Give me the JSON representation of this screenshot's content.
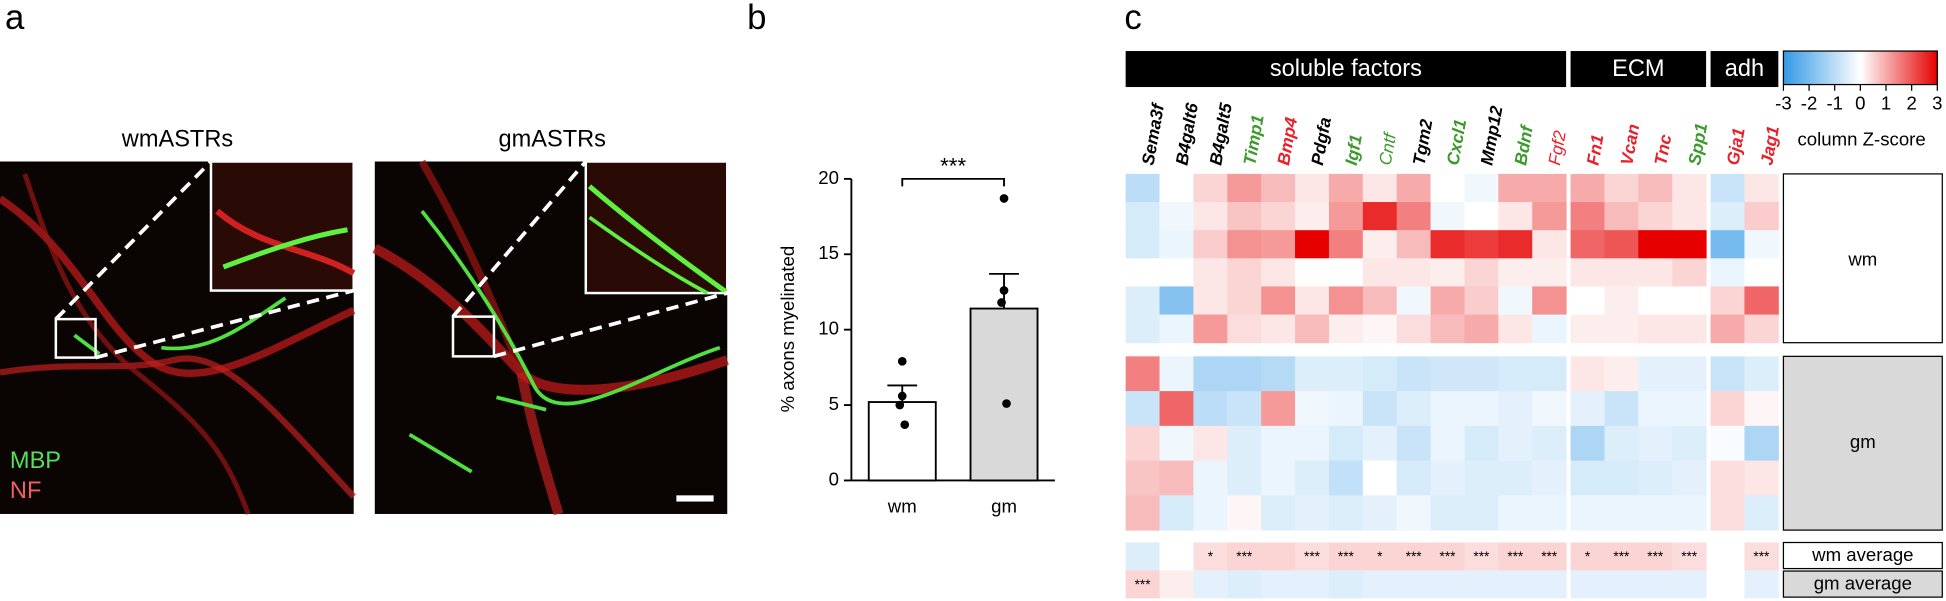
{
  "panel_labels": [
    "a",
    "b",
    "c"
  ],
  "panel_a": {
    "images": [
      {
        "title": "wmASTRs"
      },
      {
        "title": "gmASTRs"
      }
    ],
    "legend": [
      "MBP",
      "NF"
    ]
  },
  "chart_data": [
    {
      "type": "bar",
      "ylabel": "% axons myelinated",
      "categories": [
        "wm",
        "gm"
      ],
      "values": [
        5.2,
        11.4
      ],
      "errors": [
        1.1,
        2.3
      ],
      "points": [
        [
          7.9,
          5.6,
          5.0,
          3.7
        ],
        [
          18.7,
          12.6,
          11.8,
          5.1
        ]
      ],
      "colors": [
        "#ffffff",
        "#d9d9d9"
      ],
      "ylim": [
        0,
        20
      ],
      "yticks": [
        0,
        5,
        10,
        15,
        20
      ],
      "annotation": "***"
    },
    {
      "type": "heatmap",
      "groups": [
        {
          "name": "soluble factors",
          "span": 13
        },
        {
          "name": "ECM",
          "span": 4
        },
        {
          "name": "adh",
          "span": 2
        }
      ],
      "columns": [
        {
          "name": "Sema3f",
          "color": "#000000",
          "bold": true
        },
        {
          "name": "B4galt6",
          "color": "#000000",
          "bold": true
        },
        {
          "name": "B4galt5",
          "color": "#000000",
          "bold": true
        },
        {
          "name": "Timp1",
          "color": "#3a9a2a",
          "bold": true
        },
        {
          "name": "Bmp4",
          "color": "#e8202a",
          "bold": true
        },
        {
          "name": "Pdgfa",
          "color": "#000000",
          "bold": true
        },
        {
          "name": "Igf1",
          "color": "#3a9a2a",
          "bold": true
        },
        {
          "name": "Cntf",
          "color": "#3a9a2a",
          "bold": false
        },
        {
          "name": "Tgm2",
          "color": "#000000",
          "bold": true
        },
        {
          "name": "Cxcl1",
          "color": "#3a9a2a",
          "bold": true
        },
        {
          "name": "Mmp12",
          "color": "#000000",
          "bold": true
        },
        {
          "name": "Bdnf",
          "color": "#3a9a2a",
          "bold": true
        },
        {
          "name": "Fgf2",
          "color": "#e8202a",
          "bold": false
        },
        {
          "name": "Fn1",
          "color": "#e8202a",
          "bold": true
        },
        {
          "name": "Vcan",
          "color": "#e8202a",
          "bold": true
        },
        {
          "name": "Tnc",
          "color": "#e8202a",
          "bold": true
        },
        {
          "name": "Spp1",
          "color": "#3a9a2a",
          "bold": true
        },
        {
          "name": "Gja1",
          "color": "#e8202a",
          "bold": true
        },
        {
          "name": "Jag1",
          "color": "#e8202a",
          "bold": true
        }
      ],
      "row_groups": [
        {
          "name": "wm",
          "rows": [
            [
              -1,
              0,
              0.5,
              1.2,
              0.8,
              0.3,
              1,
              0.3,
              1,
              0,
              -0.2,
              1,
              1,
              1,
              0.5,
              0.8,
              0.3,
              -0.8,
              0.3
            ],
            [
              -0.6,
              -0.2,
              0.3,
              0.7,
              0.5,
              0.2,
              1.2,
              2.5,
              1.5,
              -0.2,
              0,
              0.3,
              1.2,
              1.5,
              0.8,
              0.5,
              0.3,
              -0.5,
              0.6
            ],
            [
              -0.6,
              -0.3,
              0.6,
              1.3,
              1.2,
              3,
              1.5,
              0.2,
              0.8,
              2.5,
              2.3,
              2.5,
              0.3,
              1.8,
              2,
              3,
              3,
              -2,
              -0.2
            ],
            [
              0,
              0,
              0.3,
              0.5,
              0.3,
              0,
              0,
              0.3,
              0.3,
              0.2,
              0.5,
              0.2,
              0.2,
              0.3,
              0.3,
              0.3,
              0.5,
              -0.3,
              0
            ],
            [
              -0.5,
              -1.8,
              0.3,
              0.5,
              1.3,
              0.3,
              1.3,
              0.8,
              -0.2,
              1,
              0.6,
              -0.2,
              1.3,
              0,
              0.2,
              0,
              0,
              0.5,
              1.8
            ],
            [
              -0.5,
              -0.3,
              1.2,
              0.4,
              0.3,
              0.8,
              0.2,
              0.1,
              0.4,
              0.8,
              1,
              0.3,
              -0.3,
              0.2,
              0.2,
              0.3,
              0.3,
              1,
              0.5
            ]
          ]
        },
        {
          "name": "gm",
          "rows": [
            [
              1.5,
              -0.3,
              -1.2,
              -1.2,
              -1.1,
              -0.5,
              -0.5,
              -0.6,
              -0.8,
              -0.7,
              -0.7,
              -0.6,
              -0.6,
              0.3,
              0.2,
              -0.4,
              -0.4,
              -0.8,
              -0.5
            ],
            [
              -0.8,
              1.8,
              -1,
              -0.8,
              1.2,
              -0.2,
              -0.3,
              -0.8,
              -0.5,
              -0.3,
              -0.3,
              -0.4,
              -0.2,
              -0.4,
              -0.8,
              -0.3,
              -0.3,
              0.5,
              0.1
            ],
            [
              0.5,
              -0.2,
              0.3,
              -0.5,
              -0.3,
              -0.3,
              -0.6,
              -0.4,
              -0.8,
              -0.3,
              -0.6,
              -0.4,
              -0.5,
              -1.2,
              -0.5,
              -0.4,
              -0.5,
              -0.1,
              -1.2
            ],
            [
              0.7,
              0.8,
              -0.3,
              -0.5,
              -0.3,
              -0.5,
              -0.9,
              0,
              -0.6,
              -0.4,
              -0.5,
              -0.5,
              -0.4,
              -0.6,
              -0.6,
              -0.5,
              -0.4,
              0.4,
              0.3
            ],
            [
              0.8,
              -0.6,
              -0.3,
              0.1,
              -0.5,
              -0.4,
              -0.5,
              -0.4,
              -0.2,
              -0.5,
              -0.5,
              -0.3,
              -0.3,
              -0.3,
              -0.3,
              -0.3,
              -0.3,
              0.4,
              -0.5
            ]
          ]
        }
      ],
      "averages": [
        {
          "name": "wm average",
          "values": [
            -0.5,
            0,
            0.4,
            0.5,
            0.5,
            0.4,
            0.5,
            0.5,
            0.5,
            0.5,
            0.4,
            0.5,
            0.5,
            0.5,
            0.5,
            0.5,
            0.4,
            0,
            0.4
          ],
          "stars": [
            null,
            null,
            "*",
            "***",
            null,
            "***",
            "***",
            "*",
            "***",
            "***",
            "***",
            "***",
            "***",
            "*",
            "***",
            "***",
            "***",
            null,
            "***"
          ]
        },
        {
          "name": "gm average",
          "values": [
            0.5,
            0.2,
            -0.4,
            -0.5,
            -0.4,
            -0.4,
            -0.5,
            -0.4,
            -0.4,
            -0.4,
            -0.4,
            -0.4,
            -0.4,
            -0.4,
            -0.4,
            -0.4,
            -0.4,
            0,
            -0.4
          ],
          "stars": [
            "***",
            null,
            null,
            null,
            null,
            null,
            null,
            null,
            null,
            null,
            null,
            null,
            null,
            null,
            null,
            null,
            null,
            null,
            null
          ]
        }
      ],
      "colorbar": {
        "label": "column Z-score",
        "lim": [
          -3,
          3
        ],
        "ticks": [
          -3,
          -2,
          -1,
          0,
          1,
          2,
          3
        ],
        "colors": [
          "#3399e6",
          "#ffffff",
          "#e60000"
        ]
      }
    }
  ]
}
